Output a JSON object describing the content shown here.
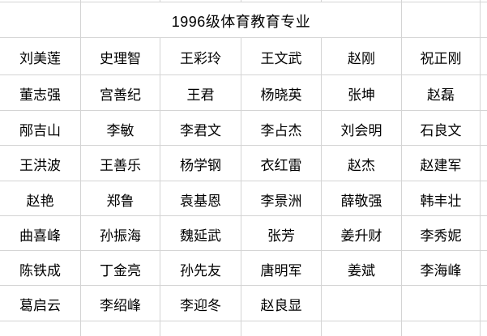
{
  "sheet": {
    "title": "1996级体育教育专业",
    "name_rows": [
      [
        "刘美莲",
        "史理智",
        "王彩玲",
        "王文武",
        "赵刚",
        "祝正刚"
      ],
      [
        "董志强",
        "宫善纪",
        "王君",
        "杨晓英",
        "张坤",
        "赵磊"
      ],
      [
        "邴吉山",
        "李敏",
        "李君文",
        "李占杰",
        "刘会明",
        "石良文"
      ],
      [
        "王洪波",
        "王善乐",
        "杨学钢",
        "衣红雷",
        "赵杰",
        "赵建军"
      ],
      [
        "赵艳",
        "郑鲁",
        "袁基恩",
        "李景洲",
        "薛敬强",
        "韩丰壮"
      ],
      [
        "曲喜峰",
        "孙振海",
        "魏延武",
        "张芳",
        "姜升财",
        "李秀妮"
      ],
      [
        "陈铁成",
        "丁金亮",
        "孙先友",
        "唐明军",
        "姜斌",
        "李海峰"
      ],
      [
        "葛启云",
        "李绍峰",
        "李迎冬",
        "赵良显",
        "",
        ""
      ]
    ]
  },
  "colors": {
    "gridline": "#d4d4d4",
    "text": "#000000",
    "background": "#ffffff"
  }
}
